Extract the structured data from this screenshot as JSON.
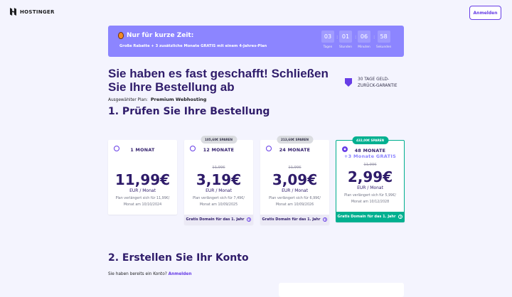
{
  "header": {
    "brand": "HOSTINGER",
    "login_label": "Anmelden"
  },
  "banner": {
    "title": "Nur für kurze Zeit:",
    "subtitle": "Große Rabatte + 3 zusätzliche Monate GRATIS mit einem 4-Jahres-Plan",
    "countdown": [
      {
        "value": "03",
        "label": "Tagen"
      },
      {
        "value": "01",
        "label": "Stunden"
      },
      {
        "value": "06",
        "label": "Minuten"
      },
      {
        "value": "58",
        "label": "Sekunden"
      }
    ]
  },
  "page": {
    "title": "Sie haben es fast geschafft! Schließen Sie Ihre Bestellung ab",
    "guarantee": "30 TAGE GELD-ZURÜCK-GARANTIE",
    "plan_label": "Ausgewählter Plan:",
    "plan_value": "Premium Webhosting"
  },
  "section1": {
    "title": "1. Prüfen Sie Ihre Bestellung",
    "plans": [
      {
        "period": "1 MONAT",
        "badge": "",
        "bonus": "",
        "old_price": "",
        "price": "11,99€",
        "unit": "EUR / Monat",
        "renewal": "Plan verlängert sich für 11,99€/ Monat am 10/10/2024",
        "footer": "",
        "selected": false
      },
      {
        "period": "12 MONATE",
        "badge": "105,60€ SPAREN",
        "bonus": "",
        "old_price": "11,99€",
        "price": "3,19€",
        "unit": "EUR / Monat",
        "renewal": "Plan verlängert sich für 7,49€/ Monat am 10/09/2025",
        "footer": "Gratis Domain für das 1. Jahr",
        "selected": false
      },
      {
        "period": "24 MONATE",
        "badge": "213,60€ SPAREN",
        "bonus": "",
        "old_price": "11,99€",
        "price": "3,09€",
        "unit": "EUR / Monat",
        "renewal": "Plan verlängert sich für 6,99€/ Monat am 10/09/2026",
        "footer": "Gratis Domain für das 1. Jahr",
        "selected": false
      },
      {
        "period": "48 MONATE",
        "badge": "432,00€ SPAREN",
        "bonus": "+3 Monate GRATIS",
        "old_price": "11,99€",
        "price": "2,99€",
        "unit": "EUR / Monat",
        "renewal": "Plan verlängert sich für 5,99€/ Monat am 10/12/2028",
        "footer": "Gratis Domain für das 1. Jahr",
        "selected": true
      }
    ]
  },
  "section2": {
    "title": "2. Erstellen Sie Ihr Konto",
    "have_account": "Sie haben bereits ein Konto?",
    "login_link": "Anmelden"
  }
}
